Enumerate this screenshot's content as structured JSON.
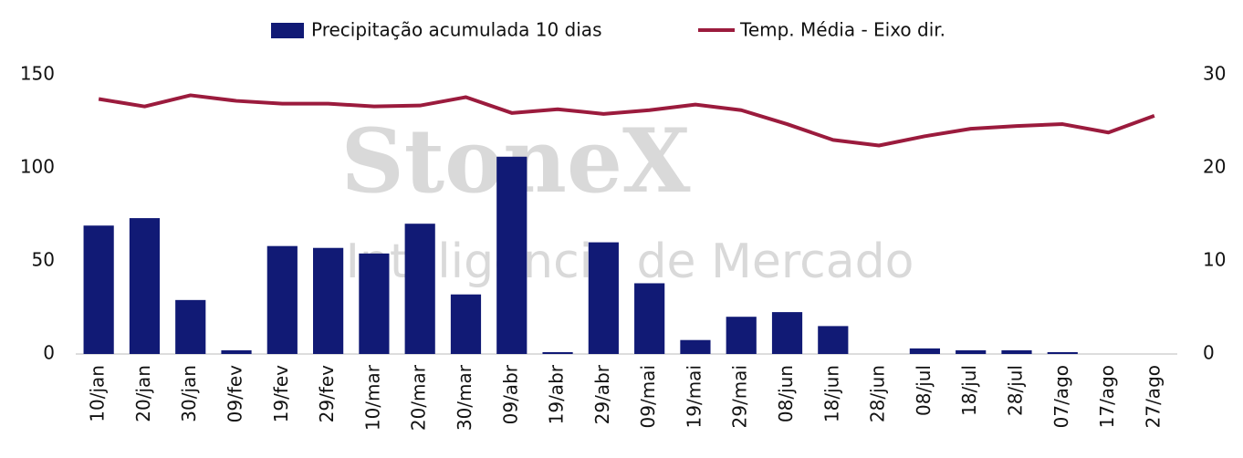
{
  "chart_data": {
    "type": "bar-line",
    "watermark": {
      "brand": "StoneX",
      "subtitle": "Inteligência de Mercado"
    },
    "categories": [
      "10/jan",
      "20/jan",
      "30/jan",
      "09/fev",
      "19/fev",
      "29/fev",
      "10/mar",
      "20/mar",
      "30/mar",
      "09/abr",
      "19/abr",
      "29/abr",
      "09/mai",
      "19/mai",
      "29/mai",
      "08/jun",
      "18/jun",
      "28/jun",
      "08/jul",
      "18/jul",
      "28/jul",
      "07/ago",
      "17/ago",
      "27/ago"
    ],
    "series": [
      {
        "name": "Precipitação acumulada 10 dias",
        "color": "#111a75",
        "kind": "bar",
        "axis": "y",
        "values": [
          69,
          73,
          29,
          2,
          58,
          57,
          54,
          70,
          32,
          106,
          1,
          60,
          38,
          7.5,
          20,
          22.5,
          15,
          0,
          3,
          2,
          2,
          1,
          0,
          0
        ]
      },
      {
        "name": "Temp. Média - Eixo dir.",
        "color": "#9b1b3d",
        "kind": "line",
        "axis": "y2",
        "values": [
          27.4,
          26.6,
          27.8,
          27.2,
          26.9,
          26.9,
          26.6,
          26.7,
          27.6,
          25.9,
          26.3,
          25.8,
          26.2,
          26.8,
          26.2,
          24.7,
          23.0,
          22.4,
          23.4,
          24.2,
          24.5,
          24.7,
          23.8,
          25.6
        ]
      }
    ],
    "ylim": [
      0,
      150
    ],
    "yticks": [
      0,
      50,
      100,
      150
    ],
    "y2lim": [
      0,
      30
    ],
    "y2ticks": [
      0,
      10,
      20,
      30
    ],
    "grid": false,
    "legend": "top"
  }
}
